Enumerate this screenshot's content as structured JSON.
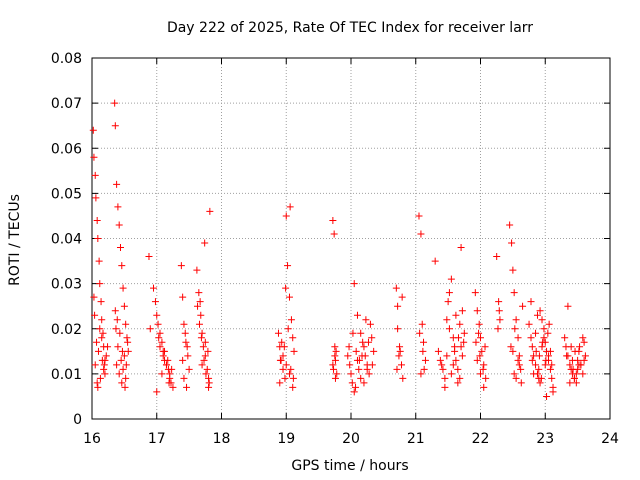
{
  "chart_data": {
    "type": "scatter",
    "title": "Day 222 of 2025, Rate Of TEC Index for receiver larr",
    "xlabel": "GPS time / hours",
    "ylabel": "ROTI / TECUs",
    "xlim": [
      16,
      24
    ],
    "ylim": [
      0,
      0.08
    ],
    "x_ticks": [
      16,
      17,
      18,
      19,
      20,
      21,
      22,
      23,
      24
    ],
    "y_ticks": [
      0,
      0.01,
      0.02,
      0.03,
      0.04,
      0.05,
      0.06,
      0.07,
      0.08
    ],
    "x_tick_labels": [
      "16",
      "17",
      "18",
      "19",
      "20",
      "21",
      "22",
      "23",
      "24"
    ],
    "y_tick_labels": [
      "0",
      "0.01",
      "0.02",
      "0.03",
      "0.04",
      "0.05",
      "0.06",
      "0.07",
      "0.08"
    ],
    "grid": true,
    "marker": "+",
    "colors": {
      "marker": "#ff0000",
      "grid": "#a0a0a0",
      "axis": "#000000"
    },
    "series": [
      {
        "name": "ROTI",
        "x": [
          16.02,
          16.03,
          16.05,
          16.06,
          16.08,
          16.09,
          16.11,
          16.12,
          16.14,
          16.15,
          16.17,
          16.18,
          16.2,
          16.05,
          16.1,
          16.15,
          16.2,
          16.08,
          16.12,
          16.18,
          16.22,
          16.04,
          16.07,
          16.13,
          16.16,
          16.24,
          16.03,
          16.09,
          16.19,
          16.35,
          16.36,
          16.38,
          16.4,
          16.42,
          16.44,
          16.46,
          16.48,
          16.5,
          16.52,
          16.54,
          16.56,
          16.38,
          16.42,
          16.46,
          16.5,
          16.55,
          16.37,
          16.4,
          16.45,
          16.48,
          16.52,
          16.36,
          16.43,
          16.53,
          16.39,
          16.47,
          16.51,
          16.88,
          16.95,
          16.98,
          17.0,
          17.02,
          17.05,
          17.08,
          17.1,
          17.12,
          17.15,
          17.18,
          17.2,
          17.22,
          17.25,
          17.05,
          17.1,
          17.15,
          17.2,
          16.9,
          17.03,
          17.12,
          17.17,
          17.23,
          17.0,
          17.08,
          17.19,
          17.38,
          17.4,
          17.42,
          17.45,
          17.48,
          17.5,
          17.42,
          17.46,
          17.4,
          17.47,
          17.44,
          17.62,
          17.65,
          17.68,
          17.7,
          17.72,
          17.75,
          17.78,
          17.8,
          17.82,
          17.7,
          17.75,
          17.8,
          17.66,
          17.73,
          17.79,
          17.63,
          17.69,
          17.76,
          17.81,
          17.67,
          17.74,
          18.88,
          18.9,
          18.92,
          18.95,
          18.98,
          19.0,
          19.02,
          19.05,
          19.08,
          19.1,
          19.12,
          18.9,
          18.95,
          19.0,
          19.05,
          19.1,
          18.93,
          18.97,
          19.03,
          19.07,
          18.91,
          19.11,
          18.99,
          19.06,
          19.72,
          19.74,
          19.75,
          19.76,
          19.78,
          19.72,
          19.75,
          19.77,
          19.73,
          19.76,
          19.95,
          19.98,
          20.0,
          20.02,
          20.05,
          20.08,
          20.1,
          20.12,
          20.15,
          20.18,
          20.2,
          20.22,
          20.25,
          20.28,
          20.3,
          20.32,
          20.35,
          20.05,
          20.15,
          20.25,
          19.97,
          20.03,
          20.13,
          20.23,
          20.33,
          20.07,
          20.17,
          20.27,
          20.1,
          20.2,
          20.7,
          20.72,
          20.75,
          20.78,
          20.8,
          20.72,
          20.76,
          20.71,
          20.74,
          20.79,
          21.05,
          21.08,
          21.1,
          21.12,
          21.15,
          21.08,
          21.11,
          21.06,
          21.13,
          21.3,
          21.35,
          21.4,
          21.45,
          21.48,
          21.5,
          21.52,
          21.55,
          21.58,
          21.6,
          21.62,
          21.65,
          21.68,
          21.7,
          21.72,
          21.75,
          21.45,
          21.55,
          21.65,
          21.7,
          21.38,
          21.48,
          21.58,
          21.68,
          21.74,
          21.42,
          21.52,
          21.62,
          21.72,
          21.6,
          21.66,
          21.92,
          21.95,
          21.98,
          22.0,
          22.02,
          22.05,
          22.08,
          21.95,
          22.0,
          22.05,
          21.93,
          21.99,
          22.04,
          22.07,
          21.97,
          22.25,
          22.28,
          22.3,
          22.27,
          22.29,
          22.45,
          22.48,
          22.5,
          22.52,
          22.55,
          22.58,
          22.6,
          22.62,
          22.65,
          22.5,
          22.55,
          22.6,
          22.47,
          22.53,
          22.58,
          22.63,
          22.52,
          22.75,
          22.78,
          22.8,
          22.82,
          22.85,
          22.88,
          22.9,
          22.92,
          22.95,
          22.98,
          23.0,
          23.02,
          23.05,
          23.08,
          23.1,
          23.12,
          22.85,
          22.95,
          23.05,
          23.1,
          22.78,
          22.88,
          22.98,
          23.08,
          22.82,
          22.92,
          23.02,
          23.12,
          22.8,
          22.9,
          23.0,
          23.06,
          22.86,
          22.96,
          23.04,
          22.91,
          23.01,
          22.94,
          23.3,
          23.32,
          23.35,
          23.38,
          23.4,
          23.42,
          23.45,
          23.48,
          23.5,
          23.52,
          23.55,
          23.58,
          23.6,
          23.62,
          23.4,
          23.5,
          23.6,
          23.35,
          23.45,
          23.55,
          23.33,
          23.43,
          23.53,
          23.38,
          23.48,
          23.58,
          23.42,
          23.52,
          23.46
        ],
        "y": [
          0.064,
          0.058,
          0.054,
          0.049,
          0.044,
          0.04,
          0.035,
          0.03,
          0.026,
          0.022,
          0.019,
          0.016,
          0.013,
          0.012,
          0.015,
          0.018,
          0.01,
          0.008,
          0.02,
          0.011,
          0.014,
          0.023,
          0.017,
          0.009,
          0.013,
          0.016,
          0.027,
          0.007,
          0.012,
          0.07,
          0.065,
          0.052,
          0.047,
          0.043,
          0.038,
          0.034,
          0.029,
          0.025,
          0.021,
          0.018,
          0.015,
          0.012,
          0.01,
          0.008,
          0.014,
          0.017,
          0.02,
          0.016,
          0.013,
          0.011,
          0.009,
          0.024,
          0.019,
          0.012,
          0.022,
          0.015,
          0.007,
          0.036,
          0.029,
          0.026,
          0.023,
          0.021,
          0.019,
          0.017,
          0.015,
          0.013,
          0.012,
          0.011,
          0.009,
          0.008,
          0.007,
          0.016,
          0.014,
          0.012,
          0.01,
          0.02,
          0.018,
          0.015,
          0.013,
          0.011,
          0.006,
          0.01,
          0.008,
          0.034,
          0.027,
          0.021,
          0.017,
          0.014,
          0.011,
          0.009,
          0.007,
          0.013,
          0.016,
          0.019,
          0.033,
          0.028,
          0.023,
          0.019,
          0.016,
          0.014,
          0.011,
          0.009,
          0.046,
          0.012,
          0.017,
          0.007,
          0.021,
          0.013,
          0.015,
          0.025,
          0.018,
          0.01,
          0.008,
          0.026,
          0.039,
          0.019,
          0.016,
          0.013,
          0.011,
          0.009,
          0.045,
          0.034,
          0.027,
          0.022,
          0.018,
          0.015,
          0.008,
          0.014,
          0.012,
          0.01,
          0.007,
          0.017,
          0.016,
          0.02,
          0.011,
          0.013,
          0.009,
          0.029,
          0.047,
          0.044,
          0.041,
          0.016,
          0.013,
          0.01,
          0.012,
          0.014,
          0.015,
          0.011,
          0.009,
          0.014,
          0.012,
          0.01,
          0.008,
          0.006,
          0.015,
          0.013,
          0.011,
          0.019,
          0.017,
          0.016,
          0.014,
          0.012,
          0.01,
          0.021,
          0.018,
          0.015,
          0.03,
          0.009,
          0.011,
          0.016,
          0.019,
          0.013,
          0.022,
          0.012,
          0.007,
          0.014,
          0.017,
          0.023,
          0.008,
          0.029,
          0.025,
          0.016,
          0.012,
          0.009,
          0.02,
          0.015,
          0.011,
          0.014,
          0.027,
          0.045,
          0.041,
          0.021,
          0.017,
          0.013,
          0.01,
          0.015,
          0.019,
          0.011,
          0.035,
          0.015,
          0.012,
          0.009,
          0.022,
          0.026,
          0.028,
          0.031,
          0.018,
          0.015,
          0.013,
          0.011,
          0.021,
          0.038,
          0.024,
          0.019,
          0.007,
          0.01,
          0.008,
          0.016,
          0.013,
          0.014,
          0.012,
          0.009,
          0.017,
          0.011,
          0.02,
          0.023,
          0.014,
          0.016,
          0.018,
          0.028,
          0.024,
          0.021,
          0.018,
          0.015,
          0.012,
          0.009,
          0.013,
          0.01,
          0.007,
          0.017,
          0.014,
          0.011,
          0.016,
          0.019,
          0.036,
          0.026,
          0.022,
          0.02,
          0.024,
          0.043,
          0.039,
          0.033,
          0.028,
          0.022,
          0.018,
          0.014,
          0.011,
          0.025,
          0.015,
          0.009,
          0.012,
          0.016,
          0.02,
          0.013,
          0.008,
          0.01,
          0.021,
          0.018,
          0.016,
          0.014,
          0.012,
          0.01,
          0.009,
          0.024,
          0.022,
          0.02,
          0.017,
          0.015,
          0.013,
          0.011,
          0.009,
          0.006,
          0.019,
          0.016,
          0.014,
          0.012,
          0.026,
          0.023,
          0.018,
          0.015,
          0.01,
          0.008,
          0.005,
          0.007,
          0.013,
          0.011,
          0.012,
          0.021,
          0.015,
          0.017,
          0.019,
          0.014,
          0.013,
          0.009,
          0.018,
          0.016,
          0.014,
          0.012,
          0.011,
          0.01,
          0.009,
          0.008,
          0.013,
          0.015,
          0.012,
          0.01,
          0.017,
          0.014,
          0.016,
          0.011,
          0.013,
          0.025,
          0.009,
          0.012,
          0.014,
          0.011,
          0.016,
          0.008,
          0.01,
          0.018,
          0.013,
          0.012,
          0.015
        ]
      }
    ]
  }
}
